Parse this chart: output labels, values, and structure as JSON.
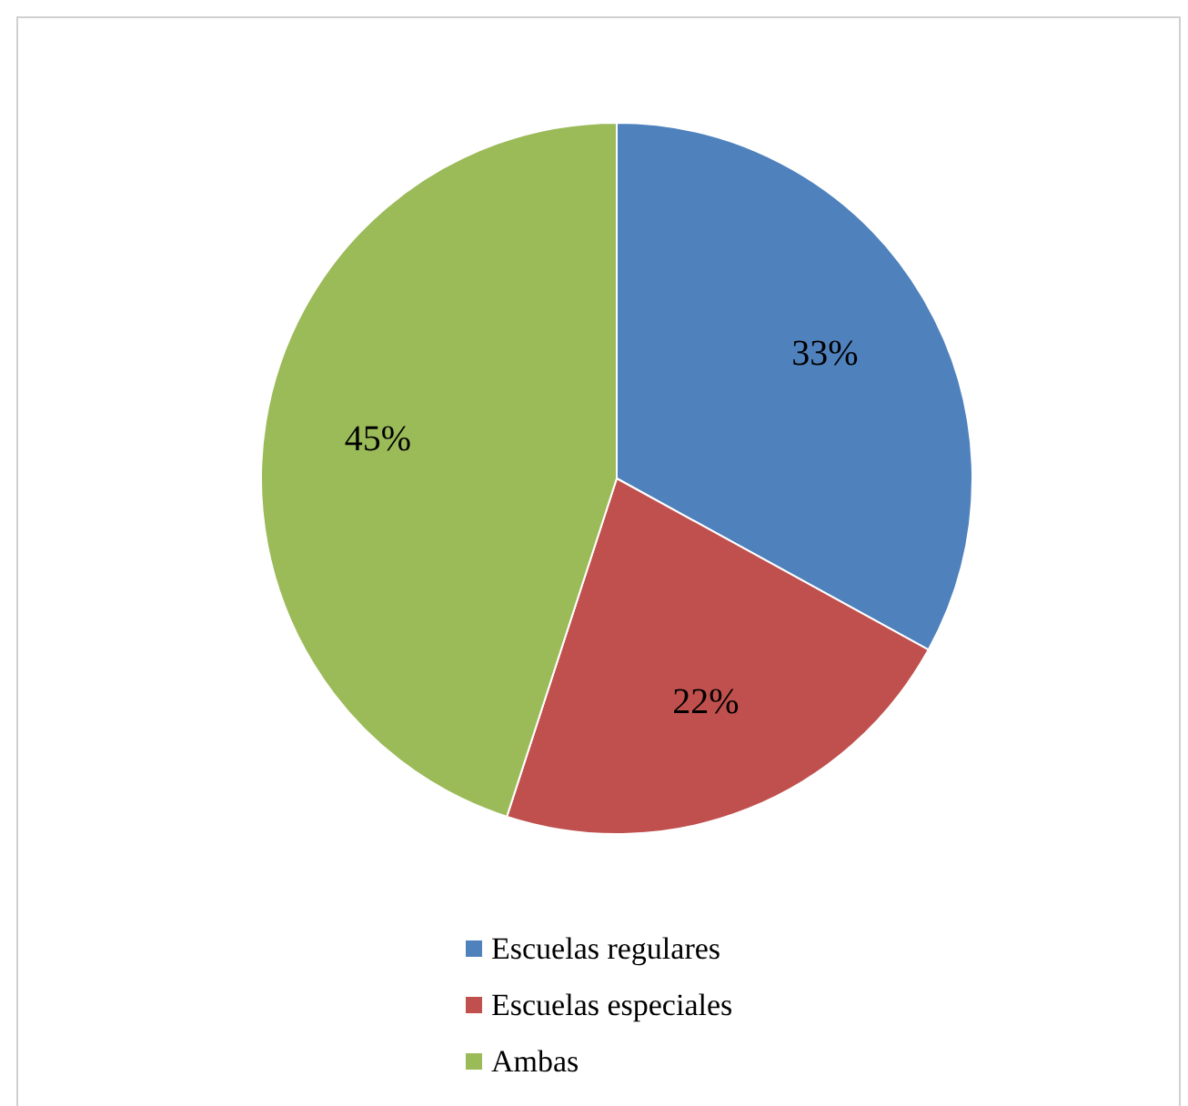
{
  "chart_data": {
    "type": "pie",
    "categories": [
      "Escuelas regulares",
      "Escuelas especiales",
      "Ambas"
    ],
    "values": [
      33,
      22,
      45
    ],
    "colors": [
      "#4f81bd",
      "#c0504d",
      "#9bbb59"
    ],
    "value_labels": [
      "33%",
      "22%",
      "45%"
    ],
    "legend": "bottom"
  }
}
